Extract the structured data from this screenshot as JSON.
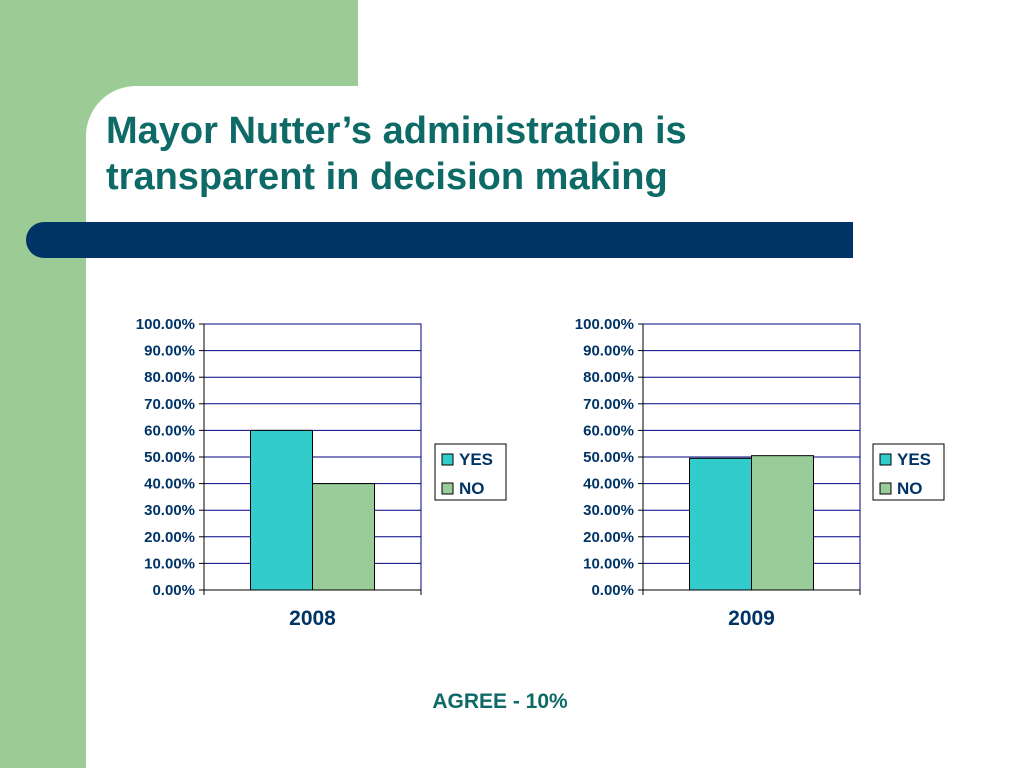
{
  "slide": {
    "title": "Mayor Nutter’s administration is transparent in decision making",
    "note": "AGREE - 10%"
  },
  "colors": {
    "band": "#9ccc95",
    "title_text": "#0e6a66",
    "bar_accent": "#003366",
    "yes": "#33cccc",
    "no": "#99cc99",
    "axis_text": "#003366"
  },
  "chart_data": [
    {
      "type": "bar",
      "categories": [
        "2008"
      ],
      "series": [
        {
          "name": "YES",
          "values": [
            0.6
          ]
        },
        {
          "name": "NO",
          "values": [
            0.4
          ]
        }
      ],
      "ylim": [
        0,
        1
      ],
      "yticks": [
        "0.00%",
        "10.00%",
        "20.00%",
        "30.00%",
        "40.00%",
        "50.00%",
        "60.00%",
        "70.00%",
        "80.00%",
        "90.00%",
        "100.00%"
      ],
      "grid": true,
      "legend": "right"
    },
    {
      "type": "bar",
      "categories": [
        "2009"
      ],
      "series": [
        {
          "name": "YES",
          "values": [
            0.495
          ]
        },
        {
          "name": "NO",
          "values": [
            0.505
          ]
        }
      ],
      "ylim": [
        0,
        1
      ],
      "yticks": [
        "0.00%",
        "10.00%",
        "20.00%",
        "30.00%",
        "40.00%",
        "50.00%",
        "60.00%",
        "70.00%",
        "80.00%",
        "90.00%",
        "100.00%"
      ],
      "grid": true,
      "legend": "right"
    }
  ]
}
